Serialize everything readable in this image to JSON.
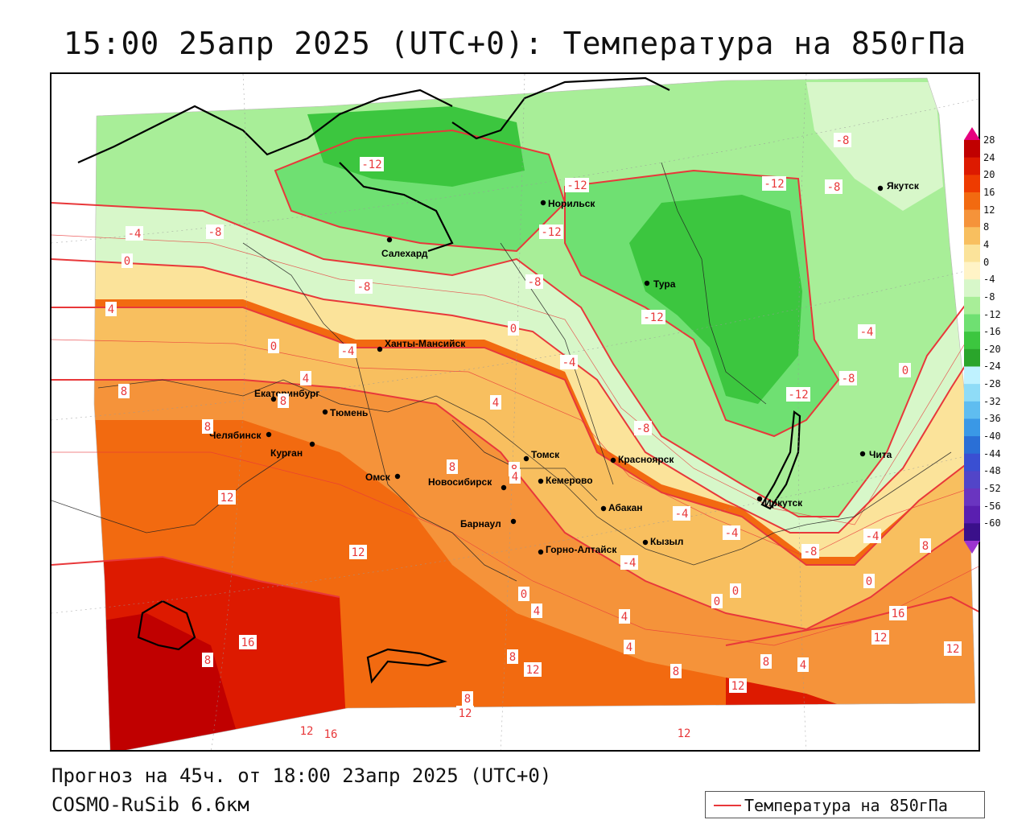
{
  "title": "15:00 25апр 2025 (UTC+0): Температура на 850гПа",
  "footer": {
    "forecast": "Прогноз на 45ч. от 18:00 23апр 2025 (UTC+0)",
    "model": "COSMO-RuSib 6.6км"
  },
  "legend": {
    "label": "Температура на 850гПа",
    "color": "#e8383a"
  },
  "colorbar": {
    "labels": [
      "28",
      "24",
      "20",
      "16",
      "12",
      "8",
      "4",
      "0",
      "-4",
      "-8",
      "-12",
      "-16",
      "-20",
      "-24",
      "-28",
      "-32",
      "-36",
      "-40",
      "-44",
      "-48",
      "-52",
      "-56",
      "-60"
    ],
    "colors": [
      "#c00000",
      "#dd1a00",
      "#ee3b00",
      "#f26a10",
      "#f5933a",
      "#f8bf5f",
      "#fbe39a",
      "#fff3c6",
      "#d7f7c9",
      "#a8ee98",
      "#6fe072",
      "#3cc63f",
      "#2aa52b",
      "#bff2ff",
      "#8fdcf7",
      "#5fbdf0",
      "#3a98e6",
      "#2a6fd6",
      "#3a4fd2",
      "#5245c8",
      "#6a35c0",
      "#5a1fb0",
      "#3a108a"
    ],
    "top_color": "#e6007e",
    "bottom_color": "#9c34d0"
  },
  "cities": [
    {
      "name": "Якутск"
    },
    {
      "name": "Норильск"
    },
    {
      "name": "Салехард"
    },
    {
      "name": "Тура"
    },
    {
      "name": "Ханты-Мансийск"
    },
    {
      "name": "Екатеринбург"
    },
    {
      "name": "Тюмень"
    },
    {
      "name": "Челябинск"
    },
    {
      "name": "Курган"
    },
    {
      "name": "Омск"
    },
    {
      "name": "Новосибирск"
    },
    {
      "name": "Томск"
    },
    {
      "name": "Кемерово"
    },
    {
      "name": "Красноярск"
    },
    {
      "name": "Барнаул"
    },
    {
      "name": "Абакан"
    },
    {
      "name": "Горно-Алтайск"
    },
    {
      "name": "Кызыл"
    },
    {
      "name": "Иркутск"
    },
    {
      "name": "Чита"
    }
  ],
  "contour_labels": [
    {
      "value": "-8"
    },
    {
      "value": "-12"
    },
    {
      "value": "-8"
    },
    {
      "value": "-12"
    },
    {
      "value": "-12"
    },
    {
      "value": "-12"
    },
    {
      "value": "-4"
    },
    {
      "value": "-8"
    },
    {
      "value": "0"
    },
    {
      "value": "-8"
    },
    {
      "value": "-8"
    },
    {
      "value": "-12"
    },
    {
      "value": "4"
    },
    {
      "value": "0"
    },
    {
      "value": "-4"
    },
    {
      "value": "0"
    },
    {
      "value": "-4"
    },
    {
      "value": "-4"
    },
    {
      "value": "-8"
    },
    {
      "value": "4"
    },
    {
      "value": "8"
    },
    {
      "value": "4"
    },
    {
      "value": "8"
    },
    {
      "value": "8"
    },
    {
      "value": "8"
    },
    {
      "value": "-12"
    },
    {
      "value": "-8"
    },
    {
      "value": "-4"
    },
    {
      "value": "0"
    },
    {
      "value": "-8"
    },
    {
      "value": "-4"
    },
    {
      "value": "8"
    },
    {
      "value": "4"
    },
    {
      "value": "-4"
    },
    {
      "value": "-4"
    },
    {
      "value": "0"
    },
    {
      "value": "8"
    },
    {
      "value": "12"
    },
    {
      "value": "12"
    },
    {
      "value": "0"
    },
    {
      "value": "0"
    },
    {
      "value": "0"
    },
    {
      "value": "4"
    },
    {
      "value": "16"
    },
    {
      "value": "4"
    },
    {
      "value": "4"
    },
    {
      "value": "16"
    },
    {
      "value": "12"
    },
    {
      "value": "12"
    },
    {
      "value": "8"
    },
    {
      "value": "12"
    },
    {
      "value": "8"
    },
    {
      "value": "12"
    },
    {
      "value": "8"
    },
    {
      "value": "12"
    },
    {
      "value": "4"
    },
    {
      "value": "12"
    },
    {
      "value": "16"
    },
    {
      "value": "12"
    },
    {
      "value": "8"
    },
    {
      "value": "8"
    },
    {
      "value": "0"
    }
  ]
}
